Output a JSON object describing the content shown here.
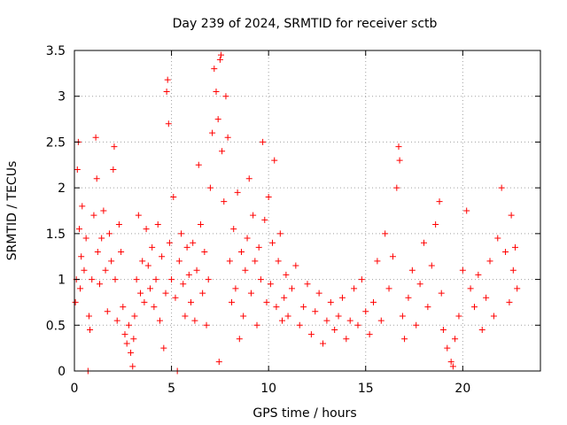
{
  "chart_data": {
    "type": "scatter",
    "title": "Day 239 of 2024, SRMTID for receiver sctb",
    "xlabel": "GPS time / hours",
    "ylabel": "SRMTID / TECUs",
    "xlim": [
      0,
      24
    ],
    "ylim": [
      0,
      3.5
    ],
    "x_ticks": [
      0,
      5,
      10,
      15,
      20
    ],
    "x_tick_labels": [
      "0",
      "5",
      "10",
      "15",
      "20"
    ],
    "y_ticks": [
      0,
      0.5,
      1,
      1.5,
      2,
      2.5,
      3,
      3.5
    ],
    "y_tick_labels": [
      "0",
      "0.5",
      "1",
      "1.5",
      "2",
      "2.5",
      "3",
      "3.5"
    ],
    "grid": true,
    "marker": "+",
    "series": [
      {
        "name": "SRMTID",
        "color": "#ff0000",
        "points": [
          [
            0.05,
            0.75
          ],
          [
            0.1,
            1.0
          ],
          [
            0.15,
            2.2
          ],
          [
            0.2,
            2.5
          ],
          [
            0.25,
            1.55
          ],
          [
            0.3,
            0.9
          ],
          [
            0.35,
            1.25
          ],
          [
            0.4,
            1.8
          ],
          [
            0.5,
            1.1
          ],
          [
            0.6,
            1.45
          ],
          [
            0.7,
            0.0
          ],
          [
            0.75,
            0.6
          ],
          [
            0.8,
            0.45
          ],
          [
            0.9,
            1.0
          ],
          [
            1.0,
            1.7
          ],
          [
            1.1,
            2.55
          ],
          [
            1.15,
            2.1
          ],
          [
            1.2,
            1.3
          ],
          [
            1.3,
            0.95
          ],
          [
            1.4,
            1.45
          ],
          [
            1.5,
            1.75
          ],
          [
            1.6,
            1.1
          ],
          [
            1.7,
            0.65
          ],
          [
            1.8,
            1.5
          ],
          [
            1.9,
            1.2
          ],
          [
            2.0,
            2.2
          ],
          [
            2.05,
            2.45
          ],
          [
            2.1,
            1.0
          ],
          [
            2.2,
            0.55
          ],
          [
            2.3,
            1.6
          ],
          [
            2.4,
            1.3
          ],
          [
            2.5,
            0.7
          ],
          [
            2.6,
            0.4
          ],
          [
            2.7,
            0.3
          ],
          [
            2.8,
            0.5
          ],
          [
            2.9,
            0.2
          ],
          [
            3.0,
            0.05
          ],
          [
            3.05,
            0.35
          ],
          [
            3.1,
            0.6
          ],
          [
            3.2,
            1.0
          ],
          [
            3.3,
            1.7
          ],
          [
            3.4,
            0.85
          ],
          [
            3.5,
            1.2
          ],
          [
            3.6,
            0.75
          ],
          [
            3.7,
            1.55
          ],
          [
            3.8,
            1.15
          ],
          [
            3.9,
            0.9
          ],
          [
            4.0,
            1.35
          ],
          [
            4.1,
            0.7
          ],
          [
            4.2,
            1.0
          ],
          [
            4.3,
            1.6
          ],
          [
            4.4,
            0.55
          ],
          [
            4.5,
            1.25
          ],
          [
            4.6,
            0.25
          ],
          [
            4.7,
            0.85
          ],
          [
            4.75,
            3.05
          ],
          [
            4.8,
            3.18
          ],
          [
            4.85,
            2.7
          ],
          [
            4.9,
            1.4
          ],
          [
            5.0,
            1.0
          ],
          [
            5.1,
            1.9
          ],
          [
            5.2,
            0.8
          ],
          [
            5.3,
            0.0
          ],
          [
            5.4,
            1.2
          ],
          [
            5.5,
            1.5
          ],
          [
            5.6,
            0.95
          ],
          [
            5.7,
            0.6
          ],
          [
            5.8,
            1.35
          ],
          [
            5.9,
            1.05
          ],
          [
            6.0,
            0.75
          ],
          [
            6.1,
            1.4
          ],
          [
            6.2,
            0.55
          ],
          [
            6.3,
            1.1
          ],
          [
            6.4,
            2.25
          ],
          [
            6.5,
            1.6
          ],
          [
            6.6,
            0.85
          ],
          [
            6.7,
            1.3
          ],
          [
            6.8,
            0.5
          ],
          [
            6.9,
            1.0
          ],
          [
            7.0,
            2.0
          ],
          [
            7.1,
            2.6
          ],
          [
            7.2,
            3.3
          ],
          [
            7.3,
            3.05
          ],
          [
            7.4,
            2.75
          ],
          [
            7.45,
            0.1
          ],
          [
            7.5,
            3.4
          ],
          [
            7.55,
            3.45
          ],
          [
            7.6,
            2.4
          ],
          [
            7.7,
            1.85
          ],
          [
            7.8,
            3.0
          ],
          [
            7.9,
            2.55
          ],
          [
            8.0,
            1.2
          ],
          [
            8.1,
            0.75
          ],
          [
            8.2,
            1.55
          ],
          [
            8.3,
            0.9
          ],
          [
            8.4,
            1.95
          ],
          [
            8.5,
            0.35
          ],
          [
            8.6,
            1.3
          ],
          [
            8.7,
            0.6
          ],
          [
            8.8,
            1.1
          ],
          [
            8.9,
            1.45
          ],
          [
            9.0,
            2.1
          ],
          [
            9.1,
            0.85
          ],
          [
            9.2,
            1.7
          ],
          [
            9.3,
            1.2
          ],
          [
            9.4,
            0.5
          ],
          [
            9.5,
            1.35
          ],
          [
            9.6,
            1.0
          ],
          [
            9.7,
            2.5
          ],
          [
            9.8,
            1.65
          ],
          [
            9.9,
            0.75
          ],
          [
            10.0,
            1.9
          ],
          [
            10.1,
            0.95
          ],
          [
            10.2,
            1.4
          ],
          [
            10.3,
            2.3
          ],
          [
            10.4,
            0.7
          ],
          [
            10.5,
            1.2
          ],
          [
            10.6,
            1.5
          ],
          [
            10.7,
            0.55
          ],
          [
            10.8,
            0.8
          ],
          [
            10.9,
            1.05
          ],
          [
            11.0,
            0.6
          ],
          [
            11.2,
            0.9
          ],
          [
            11.4,
            1.15
          ],
          [
            11.6,
            0.5
          ],
          [
            11.8,
            0.7
          ],
          [
            12.0,
            0.95
          ],
          [
            12.2,
            0.4
          ],
          [
            12.4,
            0.65
          ],
          [
            12.6,
            0.85
          ],
          [
            12.8,
            0.3
          ],
          [
            13.0,
            0.55
          ],
          [
            13.2,
            0.75
          ],
          [
            13.4,
            0.45
          ],
          [
            13.6,
            0.6
          ],
          [
            13.8,
            0.8
          ],
          [
            14.0,
            0.35
          ],
          [
            14.2,
            0.55
          ],
          [
            14.4,
            0.9
          ],
          [
            14.6,
            0.5
          ],
          [
            14.8,
            1.0
          ],
          [
            15.0,
            0.65
          ],
          [
            15.2,
            0.4
          ],
          [
            15.4,
            0.75
          ],
          [
            15.6,
            1.2
          ],
          [
            15.8,
            0.55
          ],
          [
            16.0,
            1.5
          ],
          [
            16.2,
            0.9
          ],
          [
            16.4,
            1.25
          ],
          [
            16.6,
            2.0
          ],
          [
            16.7,
            2.45
          ],
          [
            16.75,
            2.3
          ],
          [
            16.9,
            0.6
          ],
          [
            17.0,
            0.35
          ],
          [
            17.2,
            0.8
          ],
          [
            17.4,
            1.1
          ],
          [
            17.6,
            0.5
          ],
          [
            17.8,
            0.95
          ],
          [
            18.0,
            1.4
          ],
          [
            18.2,
            0.7
          ],
          [
            18.4,
            1.15
          ],
          [
            18.6,
            1.6
          ],
          [
            18.8,
            1.85
          ],
          [
            18.9,
            0.85
          ],
          [
            19.0,
            0.45
          ],
          [
            19.2,
            0.25
          ],
          [
            19.4,
            0.1
          ],
          [
            19.5,
            0.05
          ],
          [
            19.6,
            0.35
          ],
          [
            19.8,
            0.6
          ],
          [
            20.0,
            1.1
          ],
          [
            20.2,
            1.75
          ],
          [
            20.4,
            0.9
          ],
          [
            20.6,
            0.7
          ],
          [
            20.8,
            1.05
          ],
          [
            21.0,
            0.45
          ],
          [
            21.2,
            0.8
          ],
          [
            21.4,
            1.2
          ],
          [
            21.6,
            0.6
          ],
          [
            21.8,
            1.45
          ],
          [
            22.0,
            2.0
          ],
          [
            22.2,
            1.3
          ],
          [
            22.4,
            0.75
          ],
          [
            22.5,
            1.7
          ],
          [
            22.6,
            1.1
          ],
          [
            22.7,
            1.35
          ],
          [
            22.8,
            0.9
          ]
        ]
      }
    ]
  }
}
